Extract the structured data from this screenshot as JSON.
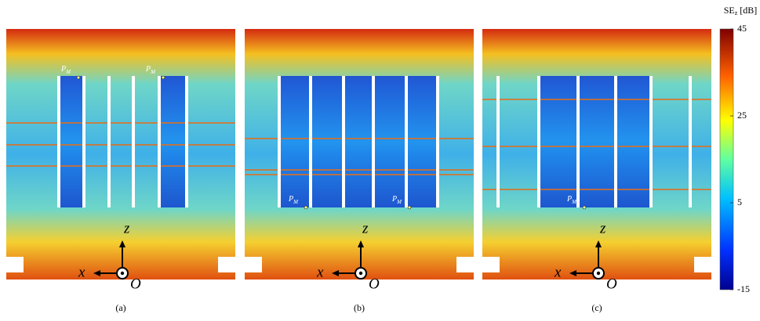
{
  "colorbar": {
    "title": {
      "main": "SE",
      "sub": "z",
      "unit": "[dB]"
    },
    "lim": [
      -15,
      45
    ],
    "ticks": [
      -15,
      5,
      25,
      45
    ]
  },
  "panels": [
    {
      "label": "(a)",
      "axes": {
        "x": "x",
        "z": "z",
        "origin": "O"
      },
      "points": [
        {
          "letter": "P",
          "sub": "M"
        },
        {
          "letter": "P",
          "sub": "M"
        }
      ]
    },
    {
      "label": "(b)",
      "axes": {
        "x": "x",
        "z": "z",
        "origin": "O"
      },
      "points": [
        {
          "letter": "P",
          "sub": "M"
        },
        {
          "letter": "P",
          "sub": "M"
        }
      ]
    },
    {
      "label": "(c)",
      "axes": {
        "x": "x",
        "z": "z",
        "origin": "O"
      },
      "points": [
        {
          "letter": "P",
          "sub": "M"
        }
      ]
    }
  ]
}
